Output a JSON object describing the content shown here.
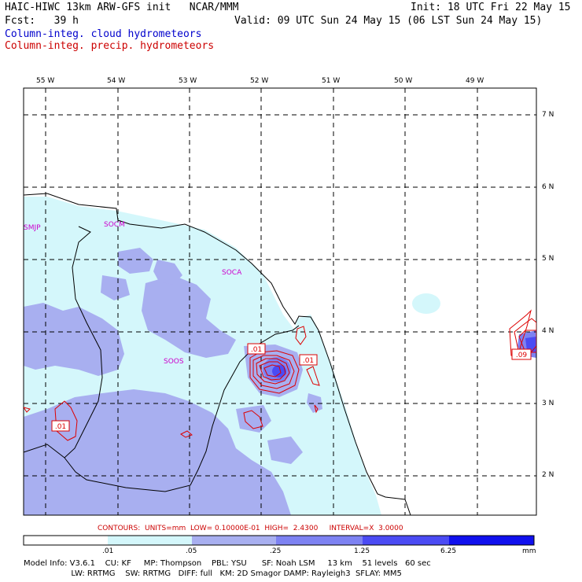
{
  "header": {
    "line1_left": "HAIC-HIWC 13km ARW-GFS init   NCAR/MMM",
    "line1_right": "Init: 18 UTC Fri 22 May 15",
    "line2_left": "Fcst:   39 h",
    "line2_right": "Valid: 09 UTC Sun 24 May 15 (06 LST Sun 24 May 15)",
    "line3": "Column-integ. cloud hydrometeors",
    "line4": "Column-integ. precip. hydrometeors"
  },
  "map": {
    "lon_labels": [
      "55 W",
      "54 W",
      "53 W",
      "52 W",
      "51 W",
      "50 W",
      "49 W"
    ],
    "lat_labels": [
      "7 N",
      "6 N",
      "5 N",
      "4 N",
      "3 N",
      "2 N"
    ],
    "stations": [
      "SMJP",
      "SOCM",
      "SOCA",
      "SOOS"
    ],
    "contour_labels": [
      ".01",
      ".01",
      ".01",
      ".09"
    ],
    "colors": {
      "land_border": "#000000",
      "grid": "#000000",
      "shade_light": "#d4f7fb",
      "shade_medium": "#a8aff0",
      "shade_dark": "#7070f0",
      "contour": "#dd0000",
      "station": "#cc00cc"
    }
  },
  "contours_info": "CONTOURS:  UNITS=mm  LOW= 0.10000E-01  HIGH=  2.4300     INTERVAL=X  3.0000",
  "legend": {
    "labels": [
      ".01",
      ".05",
      ".25",
      "1.25",
      "6.25"
    ],
    "unit": "mm",
    "colors": [
      "#ffffff",
      "#d4f7fb",
      "#a8aff0",
      "#7d82f2",
      "#4b4bf4",
      "#1010ee"
    ]
  },
  "footer": {
    "line1": "Model Info: V3.6.1    CU: KF     MP: Thompson    PBL: YSU      SF: Noah LSM     13 km    51 levels   60 sec",
    "line2": "                   LW: RRTMG    SW: RRTMG   DIFF: full   KM: 2D Smagor DAMP: Rayleigh3  SFLAY: MM5"
  }
}
